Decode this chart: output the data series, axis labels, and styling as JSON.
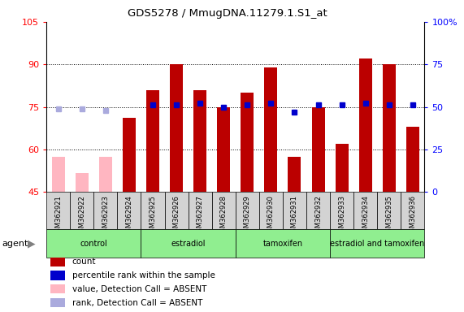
{
  "title": "GDS5278 / MmugDNA.11279.1.S1_at",
  "samples": [
    "GSM362921",
    "GSM362922",
    "GSM362923",
    "GSM362924",
    "GSM362925",
    "GSM362926",
    "GSM362927",
    "GSM362928",
    "GSM362929",
    "GSM362930",
    "GSM362931",
    "GSM362932",
    "GSM362933",
    "GSM362934",
    "GSM362935",
    "GSM362936"
  ],
  "count_values": [
    57.5,
    51.5,
    57.5,
    71.0,
    81.0,
    90.0,
    81.0,
    75.0,
    80.0,
    89.0,
    57.5,
    75.0,
    62.0,
    92.0,
    90.0,
    68.0
  ],
  "rank_values_pct": [
    49.0,
    49.0,
    48.0,
    null,
    51.0,
    51.0,
    52.0,
    50.0,
    51.0,
    52.0,
    47.0,
    51.0,
    51.0,
    52.0,
    51.0,
    51.0
  ],
  "absent_flags": [
    true,
    true,
    true,
    false,
    false,
    false,
    false,
    false,
    false,
    false,
    false,
    false,
    false,
    false,
    false,
    false
  ],
  "group_bounds": [
    [
      0,
      3,
      "control"
    ],
    [
      4,
      7,
      "estradiol"
    ],
    [
      8,
      11,
      "tamoxifen"
    ],
    [
      12,
      15,
      "estradiol and tamoxifen"
    ]
  ],
  "group_color": "#90EE90",
  "ylim_left": [
    45,
    105
  ],
  "ylim_right": [
    0,
    100
  ],
  "yticks_left": [
    45,
    60,
    75,
    90,
    105
  ],
  "yticks_right": [
    0,
    25,
    50,
    75,
    100
  ],
  "bar_color": "#BB0000",
  "absent_bar_color": "#FFB6C1",
  "rank_color": "#0000CC",
  "absent_rank_color": "#AAAADD",
  "bar_width": 0.55,
  "sample_box_color": "#D3D3D3",
  "legend_colors": [
    "#BB0000",
    "#0000CC",
    "#FFB6C1",
    "#AAAADD"
  ],
  "legend_labels": [
    "count",
    "percentile rank within the sample",
    "value, Detection Call = ABSENT",
    "rank, Detection Call = ABSENT"
  ]
}
